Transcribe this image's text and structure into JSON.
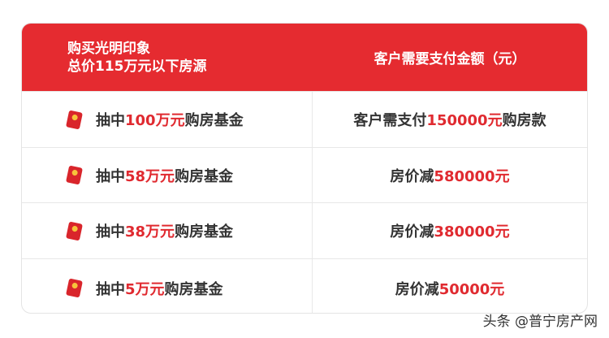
{
  "header": {
    "col1_line1": "购买光明印象",
    "col1_line2": "总价115万元以下房源",
    "col2": "客户需要支付金额（元）"
  },
  "rows": [
    {
      "pre": "抽中",
      "amount": "100万元",
      "post": "购房基金",
      "r_pre": "客户需支付",
      "r_amount": "150000元",
      "r_post": "购房款"
    },
    {
      "pre": "抽中",
      "amount": "58万元",
      "post": "购房基金",
      "r_pre": "房价减",
      "r_amount": "580000元",
      "r_post": ""
    },
    {
      "pre": "抽中",
      "amount": "38万元",
      "post": "购房基金",
      "r_pre": "房价减",
      "r_amount": "380000元",
      "r_post": ""
    },
    {
      "pre": "抽中",
      "amount": "5万元",
      "post": "购房基金",
      "r_pre": "房价减",
      "r_amount": "50000元",
      "r_post": ""
    }
  ],
  "watermark": "头条 @普宁房产网",
  "colors": {
    "accent": "#e52b30"
  }
}
